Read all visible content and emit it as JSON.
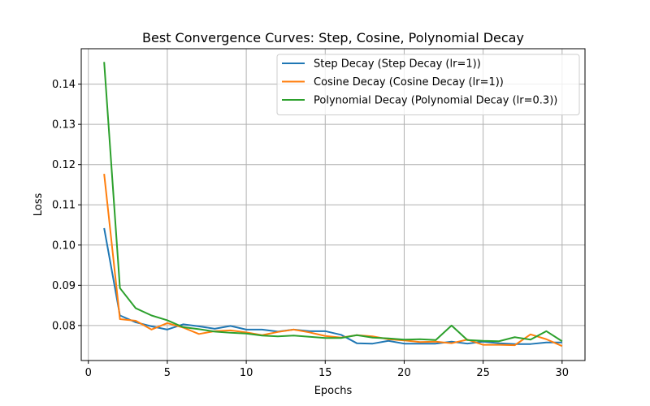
{
  "chart_data": {
    "type": "line",
    "title": "Best Convergence Curves: Step, Cosine, Polynomial Decay",
    "xlabel": "Epochs",
    "ylabel": "Loss",
    "xlim": [
      -0.45,
      31.45
    ],
    "ylim": [
      0.0713,
      0.1488
    ],
    "xticks": [
      0,
      5,
      10,
      15,
      20,
      25,
      30
    ],
    "yticks": [
      0.08,
      0.09,
      0.1,
      0.11,
      0.12,
      0.13,
      0.14
    ],
    "ytick_labels": [
      "0.08",
      "0.09",
      "0.10",
      "0.11",
      "0.12",
      "0.13",
      "0.14"
    ],
    "grid": true,
    "legend_position": "upper right",
    "x": [
      1,
      2,
      3,
      4,
      5,
      6,
      7,
      8,
      9,
      10,
      11,
      12,
      13,
      14,
      15,
      16,
      17,
      18,
      19,
      20,
      21,
      22,
      23,
      24,
      25,
      26,
      27,
      28,
      29,
      30
    ],
    "series": [
      {
        "name": "Step Decay (Step Decay (lr=1))",
        "color": "#1f77b4",
        "values": [
          0.1042,
          0.0825,
          0.0808,
          0.0798,
          0.079,
          0.0803,
          0.0798,
          0.0792,
          0.0799,
          0.079,
          0.079,
          0.0785,
          0.079,
          0.0786,
          0.0786,
          0.0777,
          0.0756,
          0.0755,
          0.0762,
          0.0755,
          0.0755,
          0.0755,
          0.076,
          0.0755,
          0.076,
          0.0756,
          0.0754,
          0.0754,
          0.0758,
          0.0758
        ]
      },
      {
        "name": "Cosine Decay (Cosine Decay (lr=1))",
        "color": "#ff7f0e",
        "values": [
          0.1177,
          0.0816,
          0.0812,
          0.079,
          0.0806,
          0.0795,
          0.0779,
          0.0786,
          0.0788,
          0.0783,
          0.0776,
          0.0784,
          0.079,
          0.0783,
          0.0774,
          0.077,
          0.0776,
          0.0773,
          0.0766,
          0.0763,
          0.0759,
          0.076,
          0.0756,
          0.0765,
          0.0752,
          0.0752,
          0.0751,
          0.0778,
          0.0766,
          0.0749
        ]
      },
      {
        "name": "Polynomial Decay (Polynomial Decay (lr=0.3))",
        "color": "#2ca02c",
        "values": [
          0.1455,
          0.0893,
          0.0843,
          0.0825,
          0.0813,
          0.0796,
          0.0791,
          0.0785,
          0.0782,
          0.078,
          0.0775,
          0.0773,
          0.0775,
          0.0772,
          0.0769,
          0.0769,
          0.0776,
          0.077,
          0.0768,
          0.0765,
          0.0766,
          0.0764,
          0.08,
          0.0764,
          0.0762,
          0.0761,
          0.0771,
          0.0765,
          0.0786,
          0.0761
        ]
      }
    ]
  }
}
